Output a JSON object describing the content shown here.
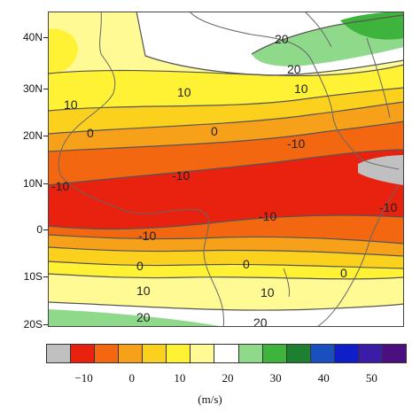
{
  "latitude_labels": [
    "40N",
    "30N",
    "20N",
    "10N",
    "0",
    "10S",
    "20S"
  ],
  "contour_labels": [
    {
      "text": "20",
      "level": 20
    },
    {
      "text": "20",
      "level": 20
    },
    {
      "text": "10",
      "level": 10
    },
    {
      "text": "10",
      "level": 10
    },
    {
      "text": "10",
      "level": 10
    },
    {
      "text": "0",
      "level": 0
    },
    {
      "text": "0",
      "level": 0
    },
    {
      "text": "-10",
      "level": -10
    },
    {
      "text": "-10",
      "level": -10
    },
    {
      "text": "-10",
      "level": -10
    },
    {
      "text": "-10",
      "level": -10
    },
    {
      "text": "-10",
      "level": -10
    },
    {
      "text": "-10",
      "level": -10
    },
    {
      "text": "0",
      "level": 0
    },
    {
      "text": "0",
      "level": 0
    },
    {
      "text": "0",
      "level": 0
    },
    {
      "text": "10",
      "level": 10
    },
    {
      "text": "10",
      "level": 10
    },
    {
      "text": "20",
      "level": 20
    },
    {
      "text": "20",
      "level": 20
    }
  ],
  "colorbar": {
    "colors": [
      "#c0c0c0",
      "#e8220f",
      "#f2670f",
      "#f7a11b",
      "#fbd11e",
      "#fff234",
      "#fffa93",
      "#ffffff",
      "#8fd98a",
      "#3fb43c",
      "#1c8030",
      "#1a4fc0",
      "#0e1ec8",
      "#3b1ca8",
      "#4b0f80"
    ],
    "tick_labels": [
      "−10",
      "0",
      "10",
      "20",
      "30",
      "40",
      "50"
    ]
  },
  "units": "(m/s)"
}
